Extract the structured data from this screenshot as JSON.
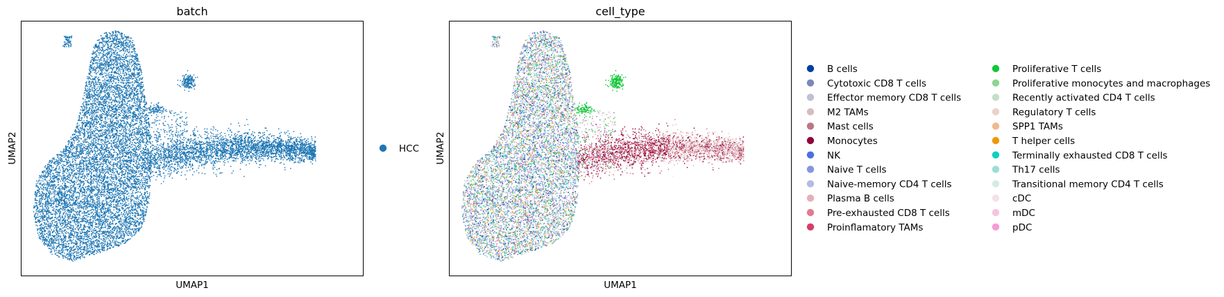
{
  "chart_data": [
    {
      "type": "scatter",
      "title": "batch",
      "xlabel": "UMAP1",
      "ylabel": "UMAP2",
      "grid": false,
      "ticks": false,
      "legend_position": "right",
      "series": [
        {
          "name": "HCC",
          "color": "#1f77b4"
        }
      ]
    },
    {
      "type": "scatter",
      "title": "cell_type",
      "xlabel": "UMAP1",
      "ylabel": "UMAP2",
      "grid": false,
      "ticks": false,
      "legend_position": "right",
      "series": [
        {
          "name": "B cells",
          "color": "#023fa5"
        },
        {
          "name": "Cytotoxic CD8 T cells",
          "color": "#7d87b9"
        },
        {
          "name": "Effector memory CD8 T cells",
          "color": "#bec1d4"
        },
        {
          "name": "M2 TAMs",
          "color": "#d6bcc0"
        },
        {
          "name": "Mast cells",
          "color": "#bb7784"
        },
        {
          "name": "Monocytes",
          "color": "#8e063b"
        },
        {
          "name": "NK",
          "color": "#4a6fe3"
        },
        {
          "name": "Naive T cells",
          "color": "#8595e1"
        },
        {
          "name": "Naive-memory CD4 T cells",
          "color": "#b5bbe3"
        },
        {
          "name": "Plasma B cells",
          "color": "#e6afb9"
        },
        {
          "name": "Pre-exhausted CD8 T cells",
          "color": "#e07b91"
        },
        {
          "name": "Proinflamatory TAMs",
          "color": "#d33f6a"
        },
        {
          "name": "Proliferative T cells",
          "color": "#11c638"
        },
        {
          "name": "Proliferative monocytes and macrophages",
          "color": "#8dd593"
        },
        {
          "name": "Recently activated CD4 T cells",
          "color": "#c6dec7"
        },
        {
          "name": "Regulatory T cells",
          "color": "#ead3c6"
        },
        {
          "name": "SPP1 TAMs",
          "color": "#f0b98d"
        },
        {
          "name": "T helper cells",
          "color": "#ef9708"
        },
        {
          "name": "Terminally exhausted CD8 T cells",
          "color": "#0fcfc0"
        },
        {
          "name": "Th17 cells",
          "color": "#9cded6"
        },
        {
          "name": "Transitional memory CD4 T cells",
          "color": "#d5eae7"
        },
        {
          "name": "cDC",
          "color": "#f3e1eb"
        },
        {
          "name": "mDC",
          "color": "#f6c4e1"
        },
        {
          "name": "pDC",
          "color": "#f79cd4"
        }
      ]
    }
  ]
}
